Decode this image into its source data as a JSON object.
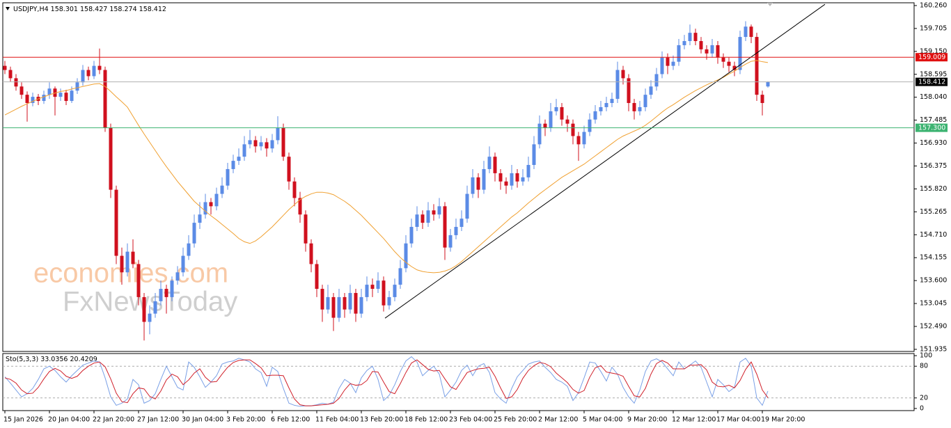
{
  "chart_data": {
    "type": "candlestick",
    "symbol": "USDJPY,H4",
    "ylim": [
      151.884,
      160.327
    ],
    "yticks": [
      {
        "value": 160.26,
        "label": "160.260"
      },
      159.705,
      {
        "value": 159.15,
        "label": "159.150"
      },
      158.595,
      {
        "value": 158.04,
        "label": "158.040"
      },
      157.485,
      {
        "value": 156.93,
        "label": "156.930"
      },
      156.375,
      {
        "value": 155.82,
        "label": "155.820"
      },
      155.265,
      {
        "value": 154.71,
        "label": "154.710"
      },
      154.155,
      {
        "value": 153.6,
        "label": "153.600"
      },
      153.045,
      {
        "value": 152.49,
        "label": "152.490"
      },
      151.935
    ],
    "bull_color": "#5b8be6",
    "bear_color": "#d0101e",
    "x_labels": [
      "15 Jan 2026",
      "20 Jan 04:00",
      "22 Jan 20:00",
      "27 Jan 12:00",
      "30 Jan 04:00",
      "3 Feb 20:00",
      "6 Feb 12:00",
      "11 Feb 04:00",
      "13 Feb 20:00",
      "18 Feb 12:00",
      "23 Feb 04:00",
      "25 Feb 20:00",
      "2 Mar 12:00",
      "5 Mar 04:00",
      "9 Mar 20:00",
      "12 Mar 12:00",
      "17 Mar 04:00",
      "19 Mar 20:00"
    ],
    "candles": [
      [
        158.8,
        158.92,
        158.6,
        158.7
      ],
      [
        158.7,
        158.78,
        158.42,
        158.5
      ],
      [
        158.5,
        158.6,
        158.2,
        158.3
      ],
      [
        158.3,
        158.4,
        158.0,
        158.1
      ],
      [
        158.1,
        158.18,
        157.45,
        157.9
      ],
      [
        157.9,
        158.15,
        157.82,
        158.05
      ],
      [
        158.05,
        158.12,
        157.85,
        157.95
      ],
      [
        157.95,
        158.2,
        157.88,
        158.1
      ],
      [
        158.1,
        158.4,
        158.0,
        158.25
      ],
      [
        158.25,
        158.3,
        157.6,
        158.05
      ],
      [
        158.05,
        158.25,
        157.95,
        158.15
      ],
      [
        158.15,
        158.22,
        157.85,
        157.95
      ],
      [
        157.95,
        158.3,
        157.9,
        158.2
      ],
      [
        158.2,
        158.5,
        158.12,
        158.4
      ],
      [
        158.4,
        158.82,
        158.32,
        158.7
      ],
      [
        158.7,
        158.78,
        158.45,
        158.55
      ],
      [
        158.55,
        158.92,
        158.48,
        158.8
      ],
      [
        158.8,
        159.22,
        158.6,
        158.7
      ],
      [
        158.7,
        158.78,
        157.2,
        157.3
      ],
      [
        157.3,
        157.4,
        155.6,
        155.8
      ],
      [
        155.8,
        155.9,
        154.0,
        154.2
      ],
      [
        154.2,
        154.4,
        153.5,
        153.8
      ],
      [
        153.8,
        154.5,
        153.7,
        154.3
      ],
      [
        154.3,
        154.6,
        153.9,
        154.0
      ],
      [
        154.0,
        154.1,
        153.0,
        153.2
      ],
      [
        153.2,
        153.3,
        152.15,
        152.6
      ],
      [
        152.6,
        153.0,
        152.3,
        152.8
      ],
      [
        152.8,
        153.3,
        152.7,
        153.1
      ],
      [
        153.1,
        153.6,
        153.0,
        153.4
      ],
      [
        153.4,
        153.5,
        152.8,
        153.2
      ],
      [
        153.2,
        153.7,
        153.1,
        153.6
      ],
      [
        153.6,
        153.95,
        153.5,
        153.8
      ],
      [
        153.8,
        154.4,
        153.7,
        154.2
      ],
      [
        154.2,
        154.7,
        154.1,
        154.5
      ],
      [
        154.5,
        155.2,
        154.4,
        155.0
      ],
      [
        155.0,
        155.5,
        154.85,
        155.2
      ],
      [
        155.2,
        155.7,
        155.1,
        155.5
      ],
      [
        155.5,
        155.6,
        155.2,
        155.4
      ],
      [
        155.4,
        155.85,
        155.3,
        155.7
      ],
      [
        155.7,
        156.1,
        155.6,
        155.9
      ],
      [
        155.9,
        156.45,
        155.8,
        156.3
      ],
      [
        156.3,
        156.65,
        156.2,
        156.5
      ],
      [
        156.5,
        156.8,
        156.4,
        156.6
      ],
      [
        156.6,
        157.1,
        156.5,
        156.9
      ],
      [
        156.9,
        157.25,
        156.8,
        157.0
      ],
      [
        157.0,
        157.1,
        156.7,
        156.85
      ],
      [
        156.85,
        157.1,
        156.75,
        156.95
      ],
      [
        156.95,
        157.05,
        156.6,
        156.8
      ],
      [
        156.8,
        157.15,
        156.7,
        157.0
      ],
      [
        157.0,
        157.58,
        156.9,
        157.3
      ],
      [
        157.3,
        157.4,
        156.5,
        156.6
      ],
      [
        156.6,
        156.7,
        155.8,
        156.0
      ],
      [
        156.0,
        156.1,
        155.4,
        155.6
      ],
      [
        155.6,
        155.75,
        155.0,
        155.2
      ],
      [
        155.2,
        155.3,
        154.3,
        154.5
      ],
      [
        154.5,
        154.6,
        153.8,
        154.0
      ],
      [
        154.0,
        154.1,
        153.2,
        153.4
      ],
      [
        153.4,
        153.5,
        152.6,
        152.9
      ],
      [
        152.9,
        153.5,
        152.8,
        153.2
      ],
      [
        153.2,
        153.3,
        152.38,
        152.7
      ],
      [
        152.7,
        153.4,
        152.6,
        153.2
      ],
      [
        153.2,
        153.3,
        152.7,
        152.9
      ],
      [
        152.9,
        153.5,
        152.8,
        153.3
      ],
      [
        153.3,
        153.4,
        152.6,
        152.8
      ],
      [
        152.8,
        153.4,
        152.7,
        153.2
      ],
      [
        153.2,
        153.7,
        153.1,
        153.5
      ],
      [
        153.5,
        153.65,
        153.2,
        153.4
      ],
      [
        153.4,
        153.8,
        153.3,
        153.6
      ],
      [
        153.6,
        153.7,
        152.85,
        153.0
      ],
      [
        153.0,
        153.35,
        152.9,
        153.2
      ],
      [
        153.2,
        153.65,
        153.1,
        153.5
      ],
      [
        153.5,
        154.1,
        153.4,
        153.9
      ],
      [
        153.9,
        154.7,
        153.8,
        154.5
      ],
      [
        154.5,
        155.1,
        154.4,
        154.9
      ],
      [
        154.9,
        155.4,
        154.8,
        155.2
      ],
      [
        155.2,
        155.3,
        154.85,
        155.0
      ],
      [
        155.0,
        155.5,
        154.9,
        155.3
      ],
      [
        155.3,
        155.45,
        155.05,
        155.2
      ],
      [
        155.2,
        155.6,
        155.1,
        155.4
      ],
      [
        155.4,
        155.5,
        154.1,
        154.4
      ],
      [
        154.4,
        154.85,
        154.3,
        154.7
      ],
      [
        154.7,
        155.1,
        154.6,
        154.9
      ],
      [
        154.9,
        155.3,
        154.8,
        155.1
      ],
      [
        155.1,
        155.9,
        155.0,
        155.7
      ],
      [
        155.7,
        156.3,
        155.6,
        156.1
      ],
      [
        156.1,
        156.2,
        155.6,
        155.8
      ],
      [
        155.8,
        156.5,
        155.7,
        156.3
      ],
      [
        156.3,
        156.85,
        156.2,
        156.6
      ],
      [
        156.6,
        156.7,
        156.0,
        156.2
      ],
      [
        156.2,
        156.3,
        155.8,
        156.0
      ],
      [
        156.0,
        156.1,
        155.7,
        155.9
      ],
      [
        155.9,
        156.4,
        155.8,
        156.2
      ],
      [
        156.2,
        156.3,
        155.85,
        156.0
      ],
      [
        156.0,
        156.3,
        155.9,
        156.1
      ],
      [
        156.1,
        156.6,
        156.0,
        156.4
      ],
      [
        156.4,
        157.1,
        156.3,
        156.9
      ],
      [
        156.9,
        157.6,
        156.8,
        157.4
      ],
      [
        157.4,
        157.5,
        157.1,
        157.3
      ],
      [
        157.3,
        157.9,
        157.2,
        157.7
      ],
      [
        157.7,
        158.0,
        157.6,
        157.8
      ],
      [
        157.8,
        157.9,
        157.35,
        157.5
      ],
      [
        157.5,
        157.6,
        157.2,
        157.4
      ],
      [
        157.4,
        157.5,
        156.9,
        157.1
      ],
      [
        157.1,
        157.2,
        156.5,
        156.9
      ],
      [
        156.9,
        157.35,
        156.8,
        157.2
      ],
      [
        157.2,
        157.65,
        157.1,
        157.5
      ],
      [
        157.5,
        157.85,
        157.4,
        157.7
      ],
      [
        157.7,
        157.95,
        157.6,
        157.8
      ],
      [
        157.8,
        158.05,
        157.7,
        157.9
      ],
      [
        157.9,
        158.15,
        157.8,
        158.0
      ],
      [
        158.0,
        158.9,
        157.9,
        158.7
      ],
      [
        158.7,
        158.8,
        158.35,
        158.5
      ],
      [
        158.5,
        158.6,
        157.7,
        157.9
      ],
      [
        157.9,
        158.0,
        157.5,
        157.7
      ],
      [
        157.7,
        157.95,
        157.6,
        157.8
      ],
      [
        157.8,
        158.25,
        157.7,
        158.1
      ],
      [
        158.1,
        158.45,
        158.0,
        158.3
      ],
      [
        158.3,
        158.75,
        158.2,
        158.6
      ],
      [
        158.6,
        159.15,
        158.5,
        159.0
      ],
      [
        159.0,
        159.1,
        158.6,
        158.8
      ],
      [
        158.8,
        159.05,
        158.7,
        158.9
      ],
      [
        158.9,
        159.45,
        158.8,
        159.3
      ],
      [
        159.3,
        159.55,
        159.2,
        159.4
      ],
      [
        159.4,
        159.8,
        159.3,
        159.6
      ],
      [
        159.6,
        159.7,
        159.3,
        159.4
      ],
      [
        159.4,
        159.5,
        159.1,
        159.2
      ],
      [
        159.2,
        159.3,
        158.95,
        159.1
      ],
      [
        159.1,
        159.45,
        159.0,
        159.3
      ],
      [
        159.3,
        159.4,
        158.85,
        159.0
      ],
      [
        159.0,
        159.1,
        158.75,
        158.9
      ],
      [
        158.9,
        159.0,
        158.65,
        158.8
      ],
      [
        158.8,
        158.9,
        158.55,
        158.7
      ],
      [
        158.7,
        159.65,
        158.6,
        159.5
      ],
      [
        159.5,
        159.88,
        159.4,
        159.75
      ],
      [
        159.75,
        159.8,
        159.35,
        159.5
      ],
      [
        159.5,
        159.6,
        157.95,
        158.1
      ],
      [
        158.1,
        158.2,
        157.6,
        157.9
      ],
      [
        158.301,
        158.427,
        158.274,
        158.412
      ]
    ],
    "ma": {
      "color": "#f0a030",
      "values": [
        157.61,
        157.68,
        157.75,
        157.82,
        157.88,
        157.94,
        158.0,
        158.05,
        158.1,
        158.14,
        158.18,
        158.2,
        158.24,
        158.27,
        158.3,
        158.33,
        158.36,
        158.37,
        158.3,
        158.18,
        158.05,
        157.93,
        157.8,
        157.58,
        157.36,
        157.15,
        156.95,
        156.75,
        156.55,
        156.36,
        156.18,
        156.0,
        155.84,
        155.68,
        155.52,
        155.4,
        155.28,
        155.17,
        155.07,
        154.96,
        154.85,
        154.74,
        154.62,
        154.54,
        154.5,
        154.56,
        154.66,
        154.78,
        154.9,
        155.04,
        155.18,
        155.32,
        155.44,
        155.56,
        155.64,
        155.7,
        155.74,
        155.74,
        155.72,
        155.68,
        155.6,
        155.52,
        155.42,
        155.3,
        155.18,
        155.04,
        154.9,
        154.76,
        154.62,
        154.46,
        154.3,
        154.16,
        154.04,
        153.94,
        153.86,
        153.82,
        153.8,
        153.79,
        153.8,
        153.83,
        153.88,
        153.96,
        154.06,
        154.18,
        154.3,
        154.42,
        154.54,
        154.66,
        154.78,
        154.9,
        155.02,
        155.14,
        155.24,
        155.36,
        155.48,
        155.59,
        155.7,
        155.8,
        155.9,
        156.0,
        156.1,
        156.18,
        156.26,
        156.34,
        156.42,
        156.52,
        156.62,
        156.72,
        156.82,
        156.92,
        157.02,
        157.1,
        157.16,
        157.22,
        157.28,
        157.36,
        157.46,
        157.57,
        157.68,
        157.78,
        157.86,
        157.95,
        158.04,
        158.12,
        158.2,
        158.27,
        158.34,
        158.4,
        158.46,
        158.52,
        158.6,
        158.67,
        158.76,
        158.84,
        158.91,
        158.93,
        158.9,
        158.88
      ]
    },
    "levels": [
      {
        "value": 159.009,
        "color": "#e01010"
      },
      {
        "value": 157.3,
        "label": "157.300",
        "color": "#3cb371"
      }
    ],
    "trendline": {
      "points": [
        [
          68.25,
          152.69
        ],
        [
          147.25,
          160.29
        ]
      ],
      "color": "#000000"
    },
    "watermark": [
      "economies.com",
      "FxNewsToday"
    ],
    "stochastic": {
      "title": "Sto(5,3,3)",
      "ylim": [
        -4,
        104
      ],
      "yticks": [
        100,
        80,
        20,
        0
      ],
      "series": [
        {
          "color": "#7aa0e6",
          "values": [
            60,
            48,
            35,
            22,
            28,
            38,
            55,
            75,
            80,
            72,
            60,
            50,
            62,
            72,
            82,
            86,
            90,
            88,
            58,
            22,
            6,
            10,
            18,
            55,
            45,
            10,
            15,
            28,
            55,
            80,
            60,
            40,
            35,
            88,
            78,
            60,
            40,
            50,
            62,
            84,
            88,
            90,
            95,
            92,
            88,
            75,
            68,
            42,
            78,
            70,
            38,
            10,
            6,
            4,
            5,
            5,
            7,
            10,
            8,
            12,
            38,
            55,
            48,
            30,
            58,
            72,
            80,
            55,
            15,
            25,
            45,
            70,
            90,
            98,
            88,
            62,
            72,
            80,
            65,
            22,
            35,
            50,
            72,
            82,
            62,
            80,
            85,
            68,
            30,
            18,
            10,
            38,
            60,
            72,
            84,
            88,
            90,
            78,
            68,
            55,
            50,
            42,
            15,
            30,
            58,
            88,
            86,
            70,
            52,
            78,
            65,
            40,
            22,
            10,
            35,
            70,
            90,
            94,
            88,
            75,
            62,
            88,
            75,
            82,
            90,
            78,
            50,
            22,
            55,
            45,
            32,
            40,
            88,
            95,
            80,
            20,
            6,
            33.0356
          ]
        },
        {
          "color": "#d0202a",
          "values": [
            58,
            55,
            48,
            35,
            28,
            29,
            40,
            56,
            70,
            76,
            71,
            61,
            57,
            61,
            72,
            80,
            86,
            88,
            79,
            56,
            29,
            13,
            11,
            28,
            39,
            37,
            23,
            18,
            33,
            54,
            65,
            60,
            45,
            54,
            67,
            75,
            59,
            50,
            51,
            65,
            78,
            87,
            91,
            92,
            92,
            85,
            77,
            62,
            63,
            63,
            62,
            39,
            18,
            7,
            5,
            5,
            6,
            7,
            8,
            10,
            19,
            35,
            47,
            44,
            45,
            53,
            70,
            69,
            50,
            32,
            28,
            47,
            68,
            86,
            92,
            83,
            74,
            71,
            72,
            56,
            41,
            36,
            52,
            68,
            72,
            75,
            76,
            78,
            61,
            39,
            19,
            22,
            36,
            57,
            72,
            81,
            87,
            85,
            79,
            67,
            58,
            49,
            36,
            29,
            34,
            59,
            77,
            81,
            69,
            67,
            65,
            61,
            42,
            24,
            22,
            38,
            65,
            85,
            91,
            86,
            75,
            75,
            75,
            82,
            82,
            83,
            73,
            50,
            42,
            41,
            44,
            39,
            53,
            74,
            88,
            65,
            35,
            20.4209
          ]
        }
      ]
    }
  }
}
